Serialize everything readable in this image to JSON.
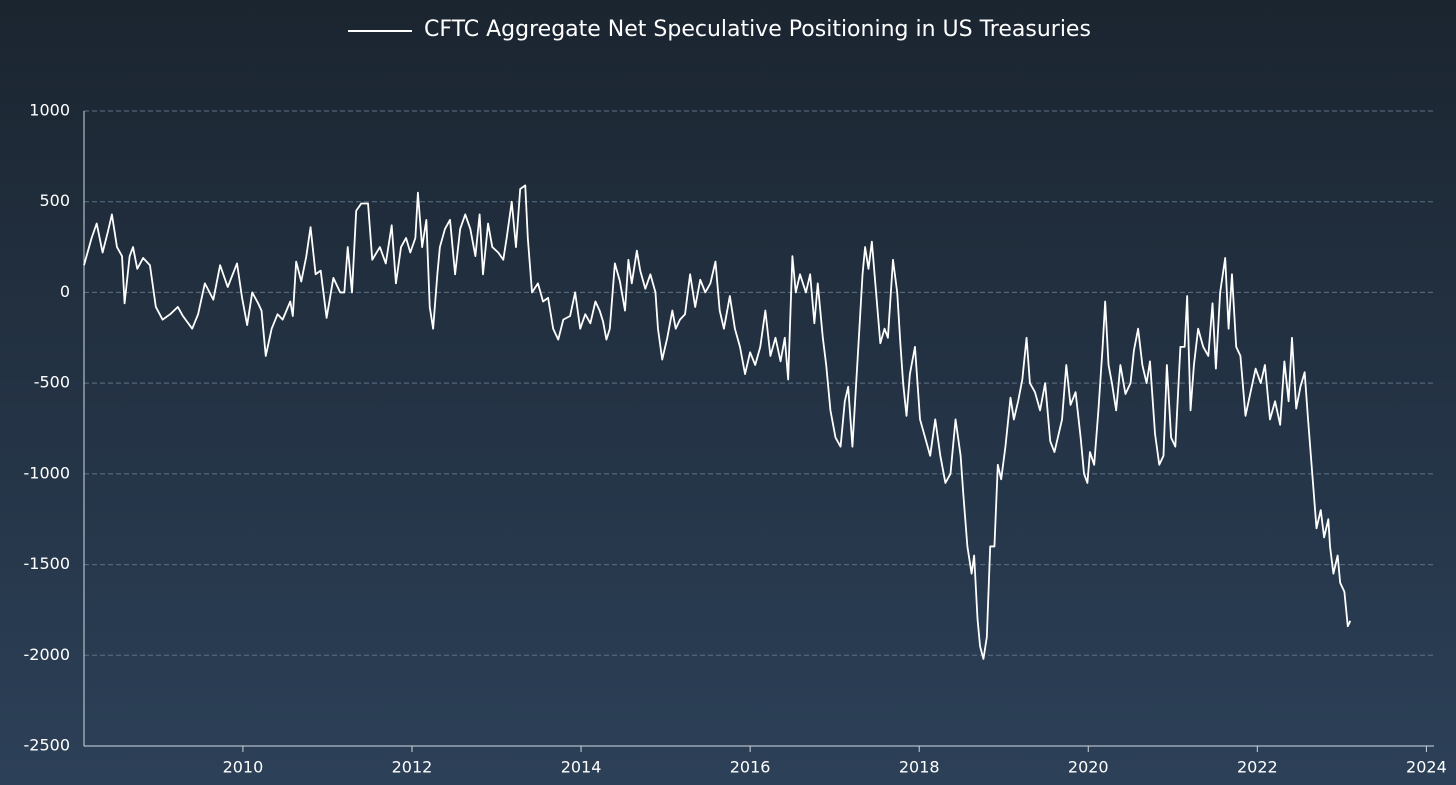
{
  "chart_data": {
    "type": "line",
    "xlim": [
      2008.12,
      2024.09
    ],
    "xticks": [
      2010,
      2012,
      2014,
      2016,
      2018,
      2020,
      2022,
      2024
    ],
    "ylim": [
      -2500,
      1000
    ],
    "yticks": [
      -2500,
      -2000,
      -1500,
      -1000,
      -500,
      0,
      500,
      1000
    ],
    "grid": true,
    "legend": "top",
    "x": [
      2008.12,
      2008.21,
      2008.27,
      2008.34,
      2008.4,
      2008.45,
      2008.51,
      2008.57,
      2008.6,
      2008.66,
      2008.7,
      2008.75,
      2008.82,
      2008.9,
      2008.97,
      2009.05,
      2009.14,
      2009.23,
      2009.29,
      2009.4,
      2009.47,
      2009.55,
      2009.65,
      2009.73,
      2009.82,
      2009.93,
      2009.99,
      2010.05,
      2010.11,
      2010.18,
      2010.22,
      2010.27,
      2010.34,
      2010.41,
      2010.47,
      2010.56,
      2010.59,
      2010.63,
      2010.69,
      2010.75,
      2010.8,
      2010.86,
      2010.92,
      2010.99,
      2011.07,
      2011.15,
      2011.2,
      2011.24,
      2011.29,
      2011.34,
      2011.4,
      2011.48,
      2011.53,
      2011.62,
      2011.69,
      2011.76,
      2011.81,
      2011.87,
      2011.93,
      2011.98,
      2012.04,
      2012.07,
      2012.12,
      2012.17,
      2012.21,
      2012.25,
      2012.3,
      2012.33,
      2012.39,
      2012.45,
      2012.51,
      2012.57,
      2012.63,
      2012.69,
      2012.75,
      2012.8,
      2012.84,
      2012.9,
      2012.95,
      2013.02,
      2013.08,
      2013.12,
      2013.18,
      2013.23,
      2013.28,
      2013.34,
      2013.37,
      2013.42,
      2013.49,
      2013.55,
      2013.61,
      2013.67,
      2013.73,
      2013.79,
      2013.87,
      2013.93,
      2013.99,
      2014.05,
      2014.11,
      2014.17,
      2014.22,
      2014.26,
      2014.3,
      2014.34,
      2014.4,
      2014.46,
      2014.52,
      2014.56,
      2014.6,
      2014.66,
      2014.7,
      2014.76,
      2014.82,
      2014.88,
      2014.91,
      2014.96,
      2015.02,
      2015.08,
      2015.12,
      2015.17,
      2015.23,
      2015.29,
      2015.35,
      2015.41,
      2015.47,
      2015.53,
      2015.59,
      2015.64,
      2015.69,
      2015.76,
      2015.82,
      2015.88,
      2015.94,
      2016.0,
      2016.06,
      2016.12,
      2016.18,
      2016.24,
      2016.3,
      2016.36,
      2016.41,
      2016.45,
      2016.5,
      2016.54,
      2016.59,
      2016.66,
      2016.71,
      2016.76,
      2016.8,
      2016.86,
      2016.9,
      2016.95,
      2017.01,
      2017.07,
      2017.12,
      2017.16,
      2017.21,
      2017.28,
      2017.33,
      2017.36,
      2017.4,
      2017.44,
      2017.49,
      2017.54,
      2017.59,
      2017.63,
      2017.69,
      2017.74,
      2017.78,
      2017.81,
      2017.85,
      2017.89,
      2017.95,
      2018.01,
      2018.07,
      2018.13,
      2018.19,
      2018.25,
      2018.31,
      2018.37,
      2018.43,
      2018.49,
      2018.52,
      2018.57,
      2018.62,
      2018.65,
      2018.69,
      2018.72,
      2018.76,
      2018.8,
      2018.84,
      2018.89,
      2018.93,
      2018.97,
      2019.02,
      2019.08,
      2019.12,
      2019.17,
      2019.22,
      2019.27,
      2019.31,
      2019.37,
      2019.43,
      2019.49,
      2019.55,
      2019.6,
      2019.64,
      2019.69,
      2019.74,
      2019.79,
      2019.85,
      2019.91,
      2019.95,
      2019.99,
      2020.02,
      2020.07,
      2020.12,
      2020.17,
      2020.2,
      2020.24,
      2020.28,
      2020.33,
      2020.38,
      2020.44,
      2020.5,
      2020.54,
      2020.59,
      2020.64,
      2020.69,
      2020.73,
      2020.79,
      2020.84,
      2020.89,
      2020.93,
      2020.98,
      2021.03,
      2021.09,
      2021.14,
      2021.17,
      2021.21,
      2021.25,
      2021.3,
      2021.36,
      2021.42,
      2021.47,
      2021.51,
      2021.56,
      2021.62,
      2021.66,
      2021.7,
      2021.75,
      2021.8,
      2021.86,
      2021.92,
      2021.98,
      2022.04,
      2022.09,
      2022.15,
      2022.21,
      2022.27,
      2022.32,
      2022.37,
      2022.41,
      2022.46,
      2022.51,
      2022.56,
      2022.6,
      2022.65,
      2022.7,
      2022.75,
      2022.79,
      2022.84,
      2022.86,
      2022.9,
      2022.95,
      2022.98,
      2023.03,
      2023.07,
      2023.1
    ],
    "series": [
      {
        "name": "CFTC Aggregate Net Speculative Positioning in US Treasuries",
        "color": "#ffffff",
        "values": [
          150,
          300,
          380,
          220,
          330,
          430,
          250,
          200,
          -60,
          200,
          250,
          130,
          190,
          150,
          -80,
          -150,
          -120,
          -80,
          -130,
          -200,
          -120,
          50,
          -40,
          150,
          30,
          160,
          -30,
          -180,
          0,
          -60,
          -100,
          -350,
          -200,
          -120,
          -150,
          -50,
          -130,
          170,
          60,
          200,
          360,
          100,
          120,
          -140,
          80,
          0,
          0,
          250,
          0,
          450,
          490,
          490,
          180,
          250,
          160,
          370,
          50,
          250,
          300,
          220,
          300,
          550,
          250,
          400,
          -80,
          -200,
          100,
          250,
          350,
          400,
          100,
          350,
          430,
          350,
          200,
          430,
          100,
          380,
          250,
          220,
          180,
          300,
          500,
          250,
          570,
          590,
          300,
          0,
          50,
          -50,
          -30,
          -200,
          -260,
          -150,
          -130,
          0,
          -200,
          -120,
          -170,
          -50,
          -100,
          -160,
          -260,
          -200,
          160,
          60,
          -100,
          180,
          50,
          230,
          120,
          20,
          100,
          0,
          -200,
          -370,
          -250,
          -100,
          -200,
          -150,
          -120,
          100,
          -80,
          70,
          0,
          50,
          170,
          -100,
          -200,
          -20,
          -200,
          -300,
          -450,
          -330,
          -400,
          -300,
          -100,
          -350,
          -250,
          -380,
          -250,
          -480,
          200,
          0,
          100,
          0,
          100,
          -170,
          50,
          -250,
          -400,
          -650,
          -800,
          -850,
          -600,
          -520,
          -850,
          -300,
          100,
          250,
          130,
          280,
          0,
          -280,
          -200,
          -250,
          180,
          0,
          -300,
          -500,
          -680,
          -450,
          -300,
          -700,
          -800,
          -900,
          -700,
          -900,
          -1050,
          -1000,
          -700,
          -900,
          -1100,
          -1400,
          -1550,
          -1450,
          -1800,
          -1950,
          -2020,
          -1900,
          -1400,
          -1400,
          -950,
          -1030,
          -850,
          -580,
          -700,
          -600,
          -480,
          -250,
          -500,
          -550,
          -650,
          -500,
          -820,
          -880,
          -800,
          -700,
          -400,
          -620,
          -550,
          -800,
          -1000,
          -1050,
          -880,
          -950,
          -650,
          -300,
          -50,
          -400,
          -500,
          -650,
          -400,
          -560,
          -500,
          -320,
          -200,
          -400,
          -500,
          -380,
          -780,
          -950,
          -900,
          -400,
          -800,
          -850,
          -300,
          -300,
          -20,
          -650,
          -400,
          -200,
          -300,
          -350,
          -60,
          -420,
          0,
          190,
          -200,
          100,
          -300,
          -350,
          -680,
          -550,
          -420,
          -500,
          -400,
          -700,
          -600,
          -730,
          -380,
          -600,
          -250,
          -640,
          -520,
          -440,
          -700,
          -1000,
          -1300,
          -1200,
          -1350,
          -1250,
          -1400,
          -1550,
          -1450,
          -1600,
          -1650,
          -1840,
          -1810
        ]
      }
    ]
  }
}
